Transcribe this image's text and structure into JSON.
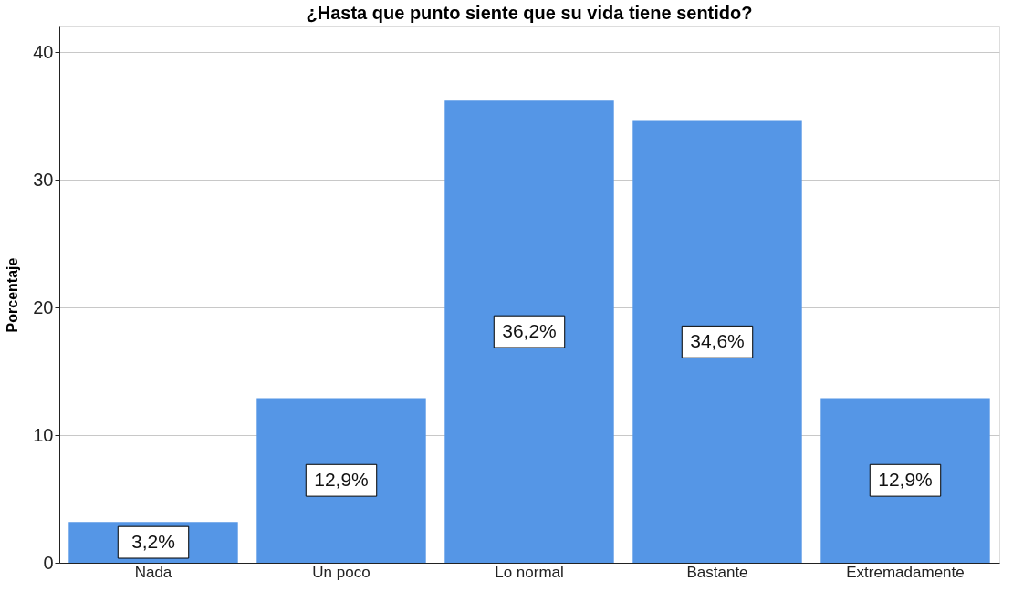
{
  "chart_data": {
    "type": "bar",
    "title": "¿Hasta que punto siente que su vida tiene sentido?",
    "ylabel": "Porcentaje",
    "categories": [
      "Nada",
      "Un poco",
      "Lo normal",
      "Bastante",
      "Extremadamente"
    ],
    "values": [
      3.2,
      12.9,
      36.2,
      34.6,
      12.9
    ],
    "value_labels": [
      "3,2%",
      "12,9%",
      "36,2%",
      "34,6%",
      "12,9%"
    ],
    "color": "#5596e6",
    "ylim": [
      0,
      42
    ],
    "yticks": [
      0,
      10,
      20,
      30,
      40
    ],
    "grid": "y"
  }
}
